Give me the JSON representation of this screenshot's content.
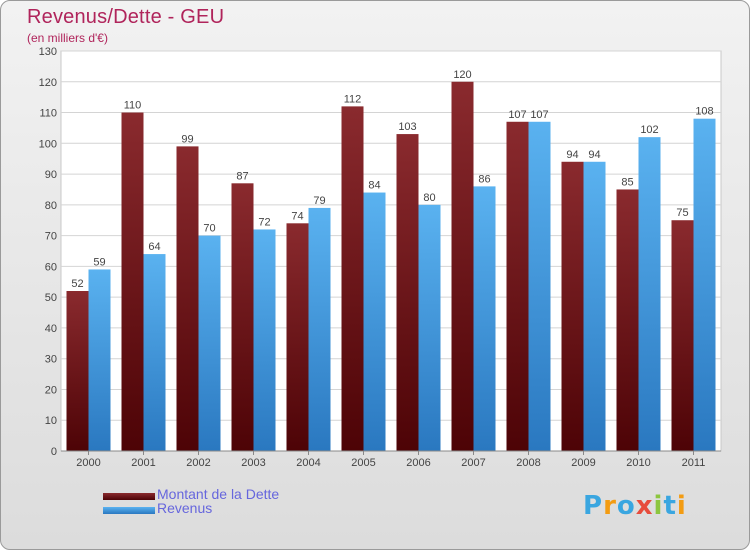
{
  "header": {
    "title": "Revenus/Dette - GEU",
    "subtitle": "(en milliers d'€)"
  },
  "legend": {
    "items": [
      {
        "label": "Montant de la Dette",
        "color": "#6b1014"
      },
      {
        "label": "Revenus",
        "color": "#3d8fd6"
      }
    ]
  },
  "brand": {
    "letters": [
      "P",
      "r",
      "o",
      "x",
      "i",
      "t",
      "i"
    ],
    "colors": [
      "#3aa6e0",
      "#f39c12",
      "#3aa6e0",
      "#e74c3c",
      "#8cc63f",
      "#3aa6e0",
      "#f39c12"
    ]
  },
  "chart_data": {
    "type": "bar",
    "categories": [
      "2000",
      "2001",
      "2002",
      "2003",
      "2004",
      "2005",
      "2006",
      "2007",
      "2008",
      "2009",
      "2010",
      "2011"
    ],
    "series": [
      {
        "name": "Montant de la Dette",
        "values": [
          52,
          110,
          99,
          87,
          74,
          112,
          103,
          120,
          107,
          94,
          85,
          75
        ],
        "color": "#7a1a1e"
      },
      {
        "name": "Revenus",
        "values": [
          59,
          64,
          70,
          72,
          79,
          84,
          80,
          86,
          107,
          94,
          102,
          108
        ],
        "color": "#4aa3e8"
      }
    ],
    "ylim": [
      0,
      130
    ],
    "yticks": [
      0,
      10,
      20,
      30,
      40,
      50,
      60,
      70,
      80,
      90,
      100,
      110,
      120,
      130
    ],
    "grid": true,
    "legend_position": "bottom-left"
  }
}
